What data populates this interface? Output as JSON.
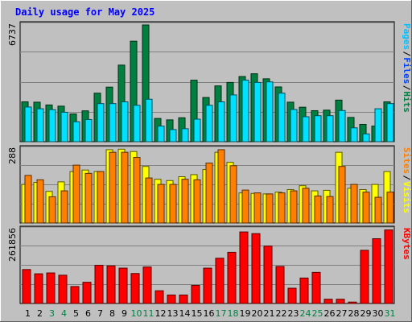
{
  "chart_data": {
    "type": "bar",
    "title": "Daily usage for May 2025",
    "x": [
      "1",
      "2",
      "3",
      "4",
      "5",
      "6",
      "7",
      "8",
      "9",
      "10",
      "11",
      "12",
      "13",
      "14",
      "15",
      "16",
      "17",
      "18",
      "19",
      "20",
      "21",
      "22",
      "23",
      "24",
      "25",
      "26",
      "27",
      "28",
      "29",
      "30",
      "31"
    ],
    "x_weekend": [
      false,
      false,
      true,
      true,
      false,
      false,
      false,
      false,
      false,
      true,
      true,
      false,
      false,
      false,
      false,
      false,
      true,
      true,
      false,
      false,
      false,
      false,
      false,
      true,
      true,
      false,
      false,
      false,
      false,
      false,
      true
    ],
    "panels": [
      {
        "ytick_label": "6737",
        "ylim": [
          0,
          6737
        ],
        "series": [
          {
            "values": [
              2300,
              2280,
              2120,
              2050,
              1600,
              1780,
              2800,
              3150,
              4420,
              5800,
              6737,
              1340,
              1260,
              1380,
              3550,
              2550,
              3220,
              3420,
              3760,
              3920,
              3630,
              3160,
              2280,
              1990,
              1790,
              1820,
              2400,
              1400,
              1000,
              900,
              2300
            ]
          },
          {
            "values": [
              2000,
              1900,
              1850,
              1700,
              1150,
              1280,
              2200,
              2200,
              2300,
              2100,
              2450,
              900,
              700,
              750,
              1300,
              2100,
              2300,
              2700,
              3550,
              3420,
              3450,
              2800,
              1860,
              1440,
              1500,
              1500,
              1800,
              800,
              450,
              1900,
              2200
            ]
          }
        ],
        "colors": [
          "#008040",
          "#00e0ff"
        ],
        "legend": [
          [
            "Pages",
            "#00c0ff"
          ],
          [
            "/",
            null
          ],
          [
            "Files",
            "#0040ff"
          ],
          [
            "/",
            null
          ],
          [
            "Hits",
            "#008040"
          ]
        ]
      },
      {
        "ytick_label": "288",
        "ylim": [
          0,
          288
        ],
        "series": [
          {
            "values": [
              150,
              158,
              123,
              160,
              200,
              206,
              200,
              285,
              287,
              278,
              220,
              170,
              165,
              180,
              188,
              208,
              275,
              236,
              117,
              115,
              113,
              120,
              130,
              145,
              125,
              127,
              275,
              135,
              130,
              150,
              200
            ]
          },
          {
            "values": [
              185,
              168,
              102,
              125,
              225,
              193,
              200,
              275,
              275,
              255,
              175,
              150,
              150,
              170,
              168,
              233,
              285,
              223,
              128,
              117,
              113,
              117,
              125,
              135,
              105,
              103,
              220,
              150,
              120,
              100,
              120
            ]
          }
        ],
        "colors": [
          "#ffff00",
          "#ff8000"
        ],
        "legend": [
          [
            "Sites",
            "#ff8000"
          ],
          [
            "/",
            null
          ],
          [
            "Visits",
            "#ffff00"
          ]
        ]
      },
      {
        "ytick_label": "261856",
        "ylim": [
          0,
          261856
        ],
        "series": [
          {
            "values": [
              120000,
              105000,
              108000,
              100000,
              60000,
              75000,
              135000,
              133000,
              125000,
              106000,
              129000,
              45000,
              30000,
              30000,
              64000,
              125000,
              160000,
              181000,
              253000,
              247000,
              203000,
              131000,
              54000,
              90000,
              110000,
              15000,
              15000,
              5000,
              188000,
              229000,
              260000
            ]
          }
        ],
        "colors": [
          "#ff0000"
        ],
        "legend": [
          [
            "KBytes",
            "#ff0000"
          ]
        ]
      }
    ],
    "colors": {
      "title": "#0000ff",
      "weekday_label": "#000000",
      "weekend_label": "#008040"
    }
  }
}
